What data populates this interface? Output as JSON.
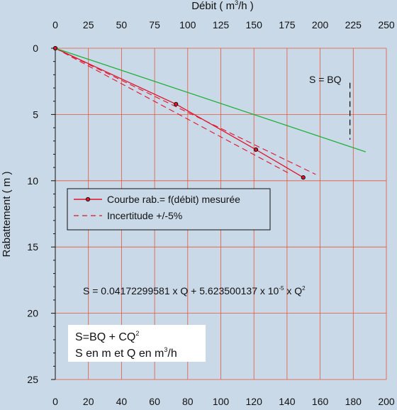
{
  "chart_data": {
    "type": "line",
    "title": "",
    "top_axis": {
      "label": "Débit ( m",
      "label_sup": "3",
      "label_tail": "/h )",
      "ticks": [
        "0",
        "25",
        "50",
        "75",
        "100",
        "125",
        "150",
        "175",
        "200",
        "225",
        "250"
      ],
      "range": [
        0,
        250
      ]
    },
    "bottom_axis": {
      "label": "",
      "ticks": [
        "0",
        "20",
        "40",
        "60",
        "80",
        "100",
        "120",
        "140",
        "160",
        "180",
        "200"
      ],
      "range": [
        0,
        200
      ]
    },
    "y_axis": {
      "label": "Rabattement ( m )",
      "ticks": [
        "0",
        "5",
        "10",
        "15",
        "20",
        "25"
      ],
      "range": [
        0,
        25
      ],
      "inverted": true
    },
    "grid": true,
    "grid_color": "#e8553a",
    "series": [
      {
        "name": "Courbe rab.= f(débit) mesurée",
        "style": "solid-with-markers",
        "color": "#e0142c",
        "x": [
          0,
          72.9,
          121.2,
          149.8
        ],
        "y": [
          0,
          4.22,
          7.65,
          9.75
        ]
      },
      {
        "name": "Incertitude +/-5%",
        "style": "dashed-upper",
        "color": "#e0142c",
        "x": [
          0,
          157.3
        ],
        "y": [
          0,
          9.52
        ]
      },
      {
        "name": "",
        "style": "dashed-lower",
        "color": "#e0142c",
        "x": [
          0,
          142.3
        ],
        "y": [
          0,
          9.52
        ]
      },
      {
        "name": "",
        "style": "solid",
        "color": "#22b03a",
        "x": [
          0,
          187.5
        ],
        "y": [
          0,
          7.82
        ]
      },
      {
        "name": "",
        "style": "dashed-vertical",
        "color": "#111111",
        "x": [
          178,
          178
        ],
        "y": [
          2.6,
          6.9
        ]
      }
    ],
    "legend": {
      "position": "middle-left",
      "entries": [
        {
          "label": "Courbe rab.= f(débit) mesurée",
          "style": "solid-with-markers"
        },
        {
          "label": "Incertitude +/-5%",
          "style": "dashed"
        }
      ]
    },
    "annotations": {
      "sbq": "S = BQ",
      "equation_main": "S = 0.04172299581 x Q + 5.623500137 x 10",
      "equation_exp": "-5",
      "equation_tail": " x Q",
      "equation_sup": "2",
      "box_line1": "S=BQ + CQ",
      "box_line1_sup": "2",
      "box_line2": "S en m et Q en m",
      "box_line2_sup": "3",
      "box_line2_tail": "/h"
    },
    "colors": {
      "background": "#c9d9e8",
      "grid": "#e8553a",
      "measured": "#e0142c",
      "fit": "#22b03a",
      "marker": "#111111"
    }
  }
}
